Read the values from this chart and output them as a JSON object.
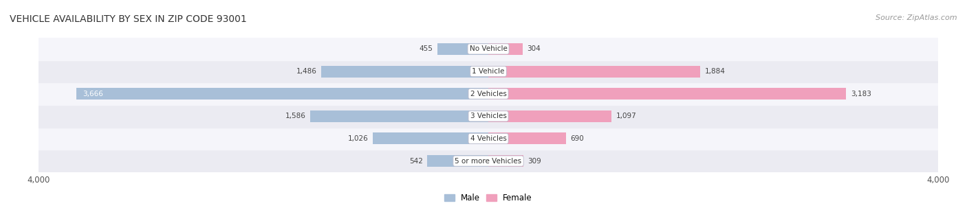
{
  "title": "VEHICLE AVAILABILITY BY SEX IN ZIP CODE 93001",
  "source": "Source: ZipAtlas.com",
  "categories": [
    "No Vehicle",
    "1 Vehicle",
    "2 Vehicles",
    "3 Vehicles",
    "4 Vehicles",
    "5 or more Vehicles"
  ],
  "male_values": [
    455,
    1486,
    3666,
    1586,
    1026,
    542
  ],
  "female_values": [
    304,
    1884,
    3183,
    1097,
    690,
    309
  ],
  "male_color": "#a8bfd8",
  "female_color": "#f0a0bc",
  "male_color_label_inside": "#4a7aaa",
  "female_color_label_inside": "#d0507a",
  "axis_max": 4000,
  "bar_height": 0.52,
  "row_bg_even": "#ebebf2",
  "row_bg_odd": "#f5f5fa",
  "title_fontsize": 10,
  "source_fontsize": 8,
  "label_fontsize": 7.5,
  "value_fontsize": 7.5,
  "legend_fontsize": 8.5,
  "axis_label_fontsize": 8.5,
  "inside_threshold": 0.8
}
